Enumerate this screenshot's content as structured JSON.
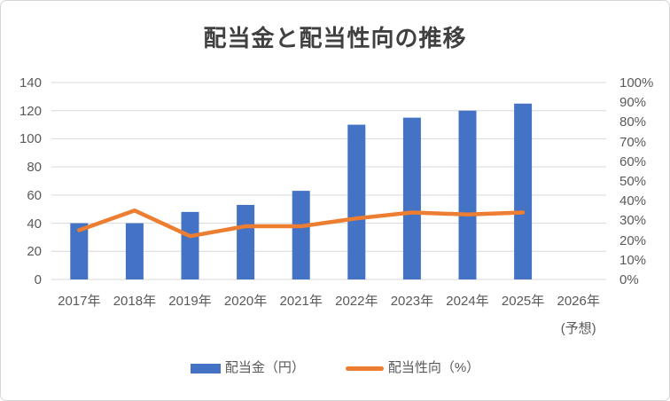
{
  "chart_data": {
    "type": "combo",
    "title": "配当金と配当性向の推移",
    "categories": [
      "2017年",
      "2018年",
      "2019年",
      "2020年",
      "2021年",
      "2022年",
      "2023年",
      "2024年",
      "2025年",
      "2026年"
    ],
    "category_sublabels": [
      "",
      "",
      "",
      "",
      "",
      "",
      "",
      "",
      "",
      "(予想)"
    ],
    "series": [
      {
        "name": "配当金（円）",
        "type": "bar",
        "axis": "left",
        "color": "#4472C4",
        "values": [
          40,
          40,
          48,
          53,
          63,
          110,
          115,
          120,
          125,
          null
        ]
      },
      {
        "name": "配当性向（%）",
        "type": "line",
        "axis": "right",
        "color": "#ED7D31",
        "values": [
          25,
          35,
          22,
          27,
          27,
          31,
          34,
          33,
          34,
          null
        ]
      }
    ],
    "left_axis": {
      "min": 0,
      "max": 140,
      "step": 20,
      "tick_labels": [
        "0",
        "20",
        "40",
        "60",
        "80",
        "100",
        "120",
        "140"
      ]
    },
    "right_axis": {
      "min": 0,
      "max": 100,
      "step": 10,
      "tick_labels": [
        "0%",
        "10%",
        "20%",
        "30%",
        "40%",
        "50%",
        "60%",
        "70%",
        "80%",
        "90%",
        "100%"
      ]
    },
    "grid": true,
    "legend_position": "bottom",
    "colors": {
      "grid": "#D9D9D9",
      "axis_text": "#595959",
      "title_text": "#404040",
      "background": "#FFFFFF",
      "border": "#D6D6D6"
    }
  }
}
